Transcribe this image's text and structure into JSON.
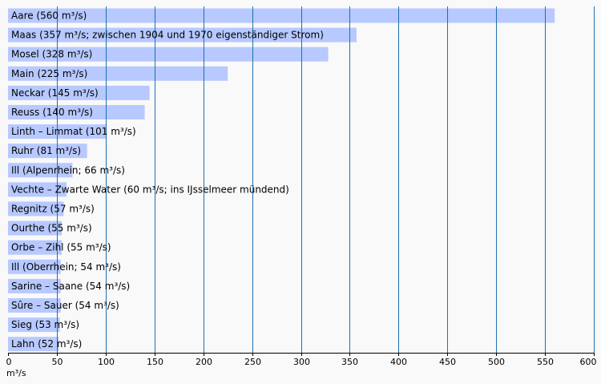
{
  "chart_data": {
    "type": "bar",
    "orientation": "horizontal",
    "categories": [
      "Aare (560 m³/s)",
      "Maas (357 m³/s; zwischen 1904 und 1970 eigenständiger Strom)",
      "Mosel (328 m³/s)",
      "Main (225 m³/s)",
      "Neckar (145 m³/s)",
      "Reuss (140 m³/s)",
      "Linth – Limmat (101 m³/s)",
      "Ruhr (81 m³/s)",
      "Ill (Alpenrhein; 66 m³/s)",
      "Vechte – Zwarte Water (60 m³/s; ins IJsselmeer mündend)",
      "Regnitz (57 m³/s)",
      "Ourthe (55 m³/s)",
      "Orbe – Zihl (55 m³/s)",
      "Ill (Oberrhein; 54 m³/s)",
      "Sarine – Saane (54 m³/s)",
      "Sûre – Sauer (54 m³/s)",
      "Sieg (53 m³/s)",
      "Lahn (52 m³/s)"
    ],
    "values": [
      560,
      357,
      328,
      225,
      145,
      140,
      101,
      81,
      66,
      60,
      57,
      55,
      55,
      54,
      54,
      54,
      53,
      52
    ],
    "xlim": [
      0,
      600
    ],
    "xticks": [
      0,
      50,
      100,
      150,
      200,
      250,
      300,
      350,
      400,
      450,
      500,
      550,
      600
    ],
    "xlabel": "m³/s",
    "grid": true,
    "colors": {
      "bar": "#b7c9ff",
      "gridline": "#1f6fb2",
      "axis": "#000000",
      "background": "#f9f9f9"
    }
  }
}
